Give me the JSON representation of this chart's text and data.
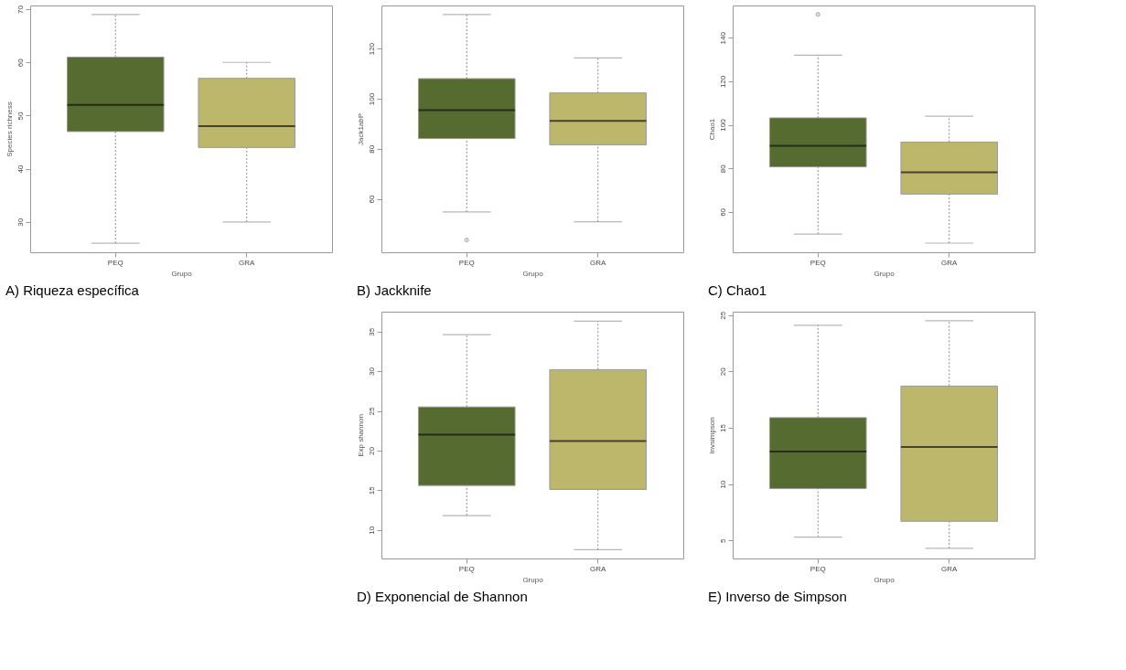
{
  "chart_data": [
    {
      "type": "box",
      "title": "A) Riqueza específica",
      "xlabel": "Grupo",
      "ylabel": "Species richness",
      "categories": [
        "PEQ",
        "GRA"
      ],
      "colors": [
        "#556b2f",
        "#bdb76b"
      ],
      "ylim": [
        24.3,
        70.7
      ],
      "yticks": [
        30,
        40,
        50,
        60,
        70
      ],
      "boxes": [
        {
          "low": 26,
          "q1": 47,
          "median": 52,
          "q3": 61,
          "high": 69
        },
        {
          "low": 30,
          "q1": 44,
          "median": 48,
          "q3": 57,
          "high": 60
        }
      ]
    },
    {
      "type": "box",
      "title": "B) Jackknife",
      "xlabel": "Grupo",
      "ylabel": "Jack1abP",
      "categories": [
        "PEQ",
        "GRA"
      ],
      "colors": [
        "#556b2f",
        "#bdb76b"
      ],
      "ylim": [
        38.7,
        137.2
      ],
      "yticks": [
        60,
        80,
        100,
        120
      ],
      "boxes": [
        {
          "low": 54.8,
          "q1": 84.1,
          "median": 95.4,
          "q3": 108,
          "high": 133.6,
          "outliers": [
            43.6
          ]
        },
        {
          "low": 50.9,
          "q1": 81.6,
          "median": 91.1,
          "q3": 102.3,
          "high": 116.3
        }
      ]
    },
    {
      "type": "box",
      "title": "C) Chao1",
      "xlabel": "Grupo",
      "ylabel": "Chao1",
      "categories": [
        "PEQ",
        "GRA"
      ],
      "colors": [
        "#556b2f",
        "#bdb76b"
      ],
      "ylim": [
        41.5,
        154.8
      ],
      "yticks": [
        60,
        80,
        100,
        120,
        140
      ],
      "boxes": [
        {
          "low": 49.8,
          "q1": 80.7,
          "median": 90.4,
          "q3": 103.2,
          "high": 132,
          "outliers": [
            150.7
          ]
        },
        {
          "low": 45.7,
          "q1": 68.2,
          "median": 78.2,
          "q3": 92.1,
          "high": 104
        }
      ]
    },
    {
      "type": "box",
      "title": "D) Exponencial de Shannon",
      "xlabel": "Grupo",
      "ylabel": "Exp shannon",
      "categories": [
        "PEQ",
        "GRA"
      ],
      "colors": [
        "#556b2f",
        "#bdb76b"
      ],
      "ylim": [
        6.4,
        37.5
      ],
      "yticks": [
        10,
        15,
        20,
        25,
        30,
        35
      ],
      "boxes": [
        {
          "low": 11.8,
          "q1": 15.6,
          "median": 22.0,
          "q3": 25.5,
          "high": 34.6
        },
        {
          "low": 7.5,
          "q1": 15.1,
          "median": 21.2,
          "q3": 30.2,
          "high": 36.3
        }
      ]
    },
    {
      "type": "box",
      "title": "E) Inverso de Simpson",
      "xlabel": "Grupo",
      "ylabel": "Invsimpson",
      "categories": [
        "PEQ",
        "GRA"
      ],
      "colors": [
        "#556b2f",
        "#bdb76b"
      ],
      "ylim": [
        3.4,
        25.3
      ],
      "yticks": [
        5,
        10,
        15,
        20,
        25
      ],
      "boxes": [
        {
          "low": 5.3,
          "q1": 9.6,
          "median": 12.9,
          "q3": 15.9,
          "high": 24.1
        },
        {
          "low": 4.3,
          "q1": 6.7,
          "median": 13.3,
          "q3": 18.7,
          "high": 24.5
        }
      ]
    }
  ]
}
